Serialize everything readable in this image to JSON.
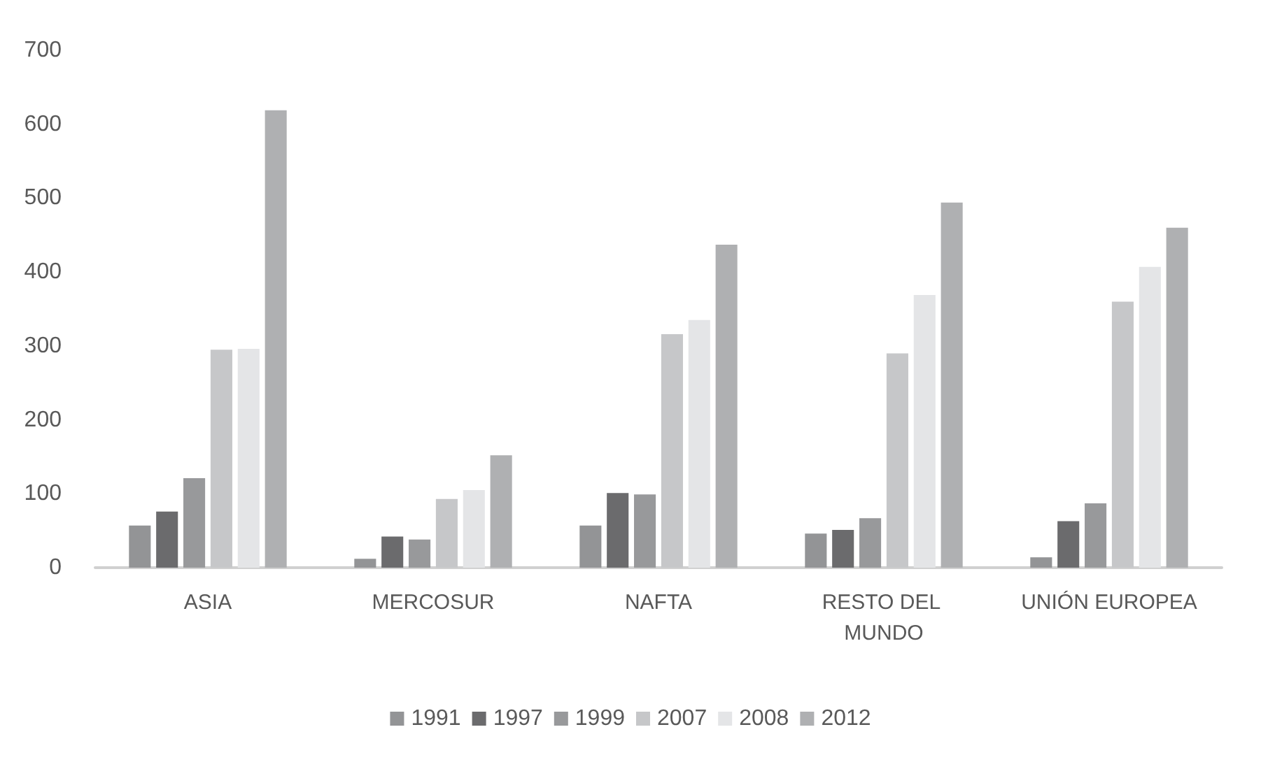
{
  "chart_data": {
    "type": "bar",
    "categories": [
      "ASIA",
      "MERCOSUR",
      "NAFTA",
      "RESTO DEL MUNDO",
      "UNIÓN EUROPEA"
    ],
    "series": [
      {
        "name": "1991",
        "color": "#939496",
        "values": [
          57,
          12,
          57,
          46,
          14
        ]
      },
      {
        "name": "1997",
        "color": "#6b6b6d",
        "values": [
          76,
          42,
          101,
          51,
          63
        ]
      },
      {
        "name": "1999",
        "color": "#98999b",
        "values": [
          121,
          38,
          99,
          67,
          87
        ]
      },
      {
        "name": "2007",
        "color": "#c6c7c9",
        "values": [
          295,
          93,
          316,
          290,
          360
        ]
      },
      {
        "name": "2008",
        "color": "#e4e5e7",
        "values": [
          296,
          105,
          335,
          369,
          407
        ]
      },
      {
        "name": "2012",
        "color": "#afb0b2",
        "values": [
          619,
          152,
          437,
          494,
          460
        ]
      }
    ],
    "ylim": [
      0,
      700
    ],
    "yticks": [
      0,
      100,
      200,
      300,
      400,
      500,
      600,
      700
    ],
    "grid": false,
    "legend": "bottom"
  }
}
